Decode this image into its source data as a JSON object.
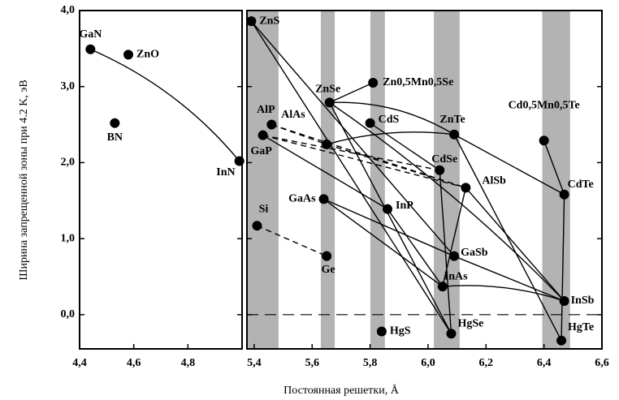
{
  "chart_data": {
    "type": "scatter",
    "y_label": "Ширина запрещенной зоны при 4.2 K, эВ",
    "x_label": "Постоянная решетки, Å",
    "ylim": [
      -0.45,
      4.0
    ],
    "yticks": [
      {
        "value": 0,
        "label": "0,0"
      },
      {
        "value": 1,
        "label": "1,0"
      },
      {
        "value": 2,
        "label": "2,0"
      },
      {
        "value": 3,
        "label": "3,0"
      },
      {
        "value": 4,
        "label": "4,0"
      }
    ],
    "panels": [
      {
        "xlim": [
          4.4,
          5.0
        ],
        "xticks": [
          {
            "value": 4.4,
            "label": "4,4"
          },
          {
            "value": 4.6,
            "label": "4,6"
          },
          {
            "value": 4.8,
            "label": "4,8"
          }
        ],
        "names": [
          "GaN",
          "ZnO",
          "BN",
          "InN"
        ],
        "x": [
          4.44,
          4.58,
          4.53,
          4.99
        ],
        "values": [
          3.49,
          3.42,
          2.52,
          2.02
        ]
      },
      {
        "xlim": [
          5.375,
          6.6
        ],
        "xticks": [
          {
            "value": 5.4,
            "label": "5,4"
          },
          {
            "value": 5.6,
            "label": "5,6"
          },
          {
            "value": 5.8,
            "label": "5,8"
          },
          {
            "value": 6.0,
            "label": "6,0"
          },
          {
            "value": 6.2,
            "label": "6,2"
          },
          {
            "value": 6.4,
            "label": "6,4"
          },
          {
            "value": 6.6,
            "label": "6,6"
          }
        ],
        "shaded_ranges": [
          [
            5.378,
            5.484
          ],
          [
            5.63,
            5.678
          ],
          [
            5.801,
            5.851
          ],
          [
            6.02,
            6.109
          ],
          [
            6.394,
            6.49
          ]
        ],
        "names": [
          "ZnS",
          "ZnSe",
          "Zn0,5Mn0,5Se",
          "CdS",
          "AlP",
          "AlAs",
          "GaP",
          "GaAs",
          "Si",
          "Ge",
          "InP",
          "ZnTe",
          "CdSe",
          "AlSb",
          "GaSb",
          "InAs",
          "HgS",
          "HgSe",
          "Cd0,5Mn0,5Te",
          "CdTe",
          "InSb",
          "HgTe"
        ],
        "x": [
          5.39,
          5.66,
          5.81,
          5.8,
          5.46,
          5.65,
          5.43,
          5.64,
          5.41,
          5.65,
          5.86,
          6.09,
          6.04,
          6.13,
          6.09,
          6.05,
          5.84,
          6.08,
          6.4,
          6.47,
          6.47,
          6.46
        ],
        "values": [
          3.86,
          2.79,
          3.05,
          2.52,
          2.5,
          2.24,
          2.36,
          1.52,
          1.17,
          0.77,
          1.39,
          2.37,
          1.9,
          1.67,
          0.77,
          0.37,
          -0.22,
          -0.25,
          2.29,
          1.58,
          0.18,
          -0.34
        ]
      }
    ]
  }
}
